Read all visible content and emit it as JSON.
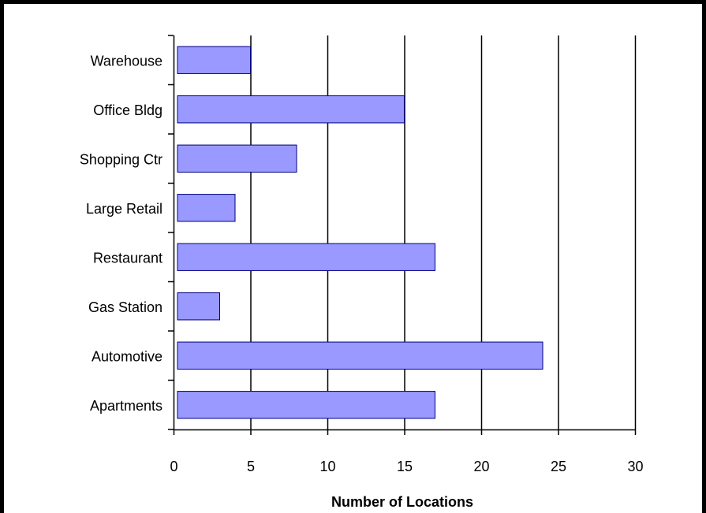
{
  "chart_data": {
    "type": "bar",
    "orientation": "horizontal",
    "categories": [
      "Warehouse",
      "Office Bldg",
      "Shopping Ctr",
      "Large Retail",
      "Restaurant",
      "Gas Station",
      "Automotive",
      "Apartments"
    ],
    "values": [
      5,
      15,
      8,
      4,
      17,
      3,
      24,
      17
    ],
    "xlabel": "Number of Locations",
    "ylabel": "",
    "xlim": [
      0,
      30
    ],
    "xticks": [
      "0",
      "5",
      "10",
      "15",
      "20",
      "25",
      "30"
    ],
    "grid": "vertical",
    "legend": "none",
    "bar_color": "#9999ff",
    "bar_edge_color": "#000080"
  }
}
